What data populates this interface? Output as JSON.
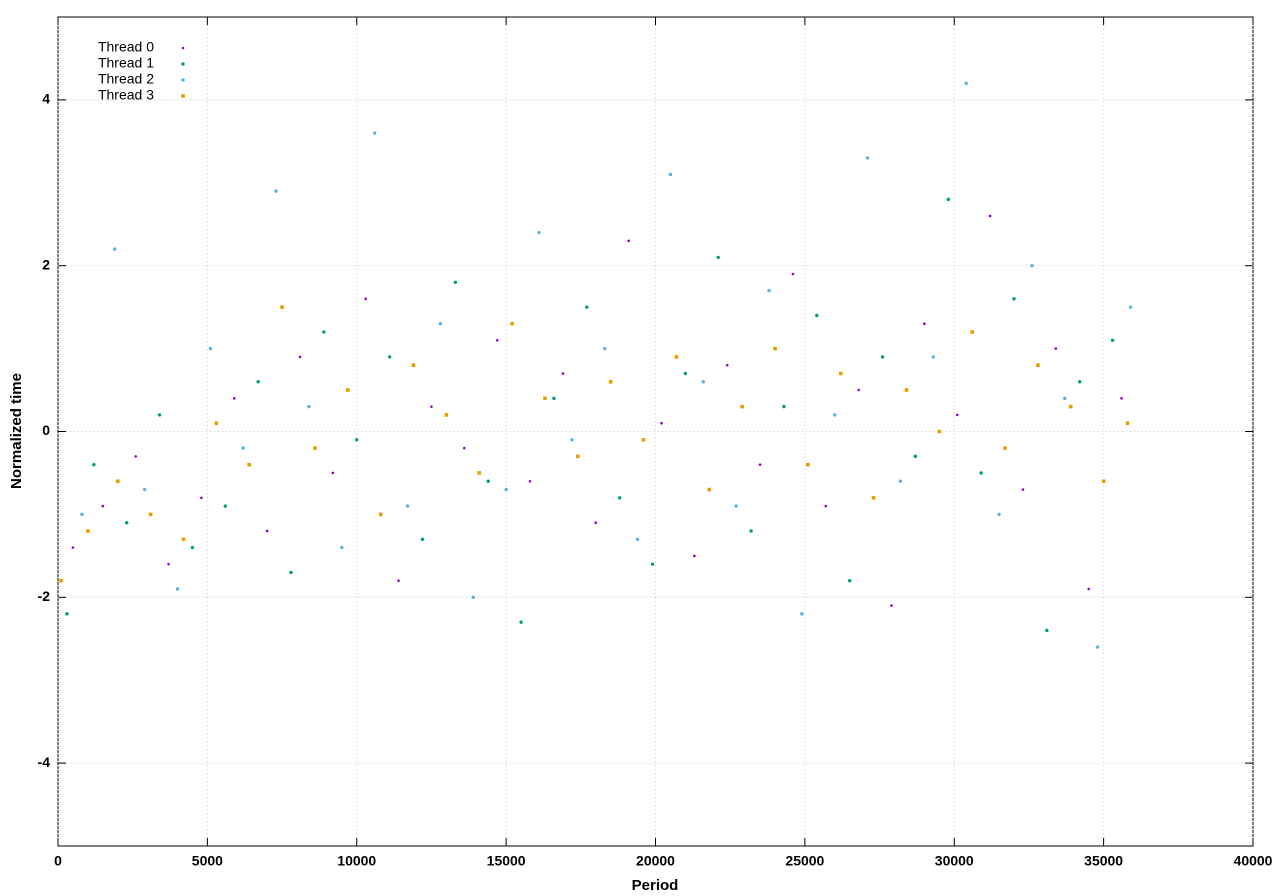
{
  "chart_data": {
    "type": "scatter",
    "x_label": "Period",
    "y_label": "Normalized time",
    "xlim": [
      0,
      40000
    ],
    "ylim": [
      -5,
      5
    ],
    "xticks": [
      0,
      5000,
      10000,
      15000,
      20000,
      25000,
      30000,
      35000,
      40000
    ],
    "yticks": [
      -4,
      -2,
      0,
      2,
      4
    ],
    "grid": true,
    "legend": "top-left",
    "series": [
      {
        "name": "Thread 0",
        "color": "#9400d3",
        "x": [
          500,
          1500,
          2600,
          3700,
          4800,
          5900,
          7000,
          8100,
          9200,
          10300,
          11400,
          12500,
          13600,
          14700,
          15800,
          16900,
          18000,
          19100,
          20200,
          21300,
          22400,
          23500,
          24600,
          25700,
          26800,
          27900,
          29000,
          30100,
          31200,
          32300,
          33400,
          34500,
          35600
        ],
        "values": [
          -1.4,
          -0.9,
          -0.3,
          -1.6,
          -0.8,
          0.4,
          -1.2,
          0.9,
          -0.5,
          1.6,
          -1.8,
          0.3,
          -0.2,
          1.1,
          -0.6,
          0.7,
          -1.1,
          2.3,
          0.1,
          -1.5,
          0.8,
          -0.4,
          1.9,
          -0.9,
          0.5,
          -2.1,
          1.3,
          0.2,
          2.6,
          -0.7,
          1.0,
          -1.9,
          0.4
        ]
      },
      {
        "name": "Thread 1",
        "color": "#009e73",
        "x": [
          300,
          1200,
          2300,
          3400,
          4500,
          5600,
          6700,
          7800,
          8900,
          10000,
          11100,
          12200,
          13300,
          14400,
          15500,
          16600,
          17700,
          18800,
          19900,
          21000,
          22100,
          23200,
          24300,
          25400,
          26500,
          27600,
          28700,
          29800,
          30900,
          32000,
          33100,
          34200,
          35300
        ],
        "values": [
          -2.2,
          -0.4,
          -1.1,
          0.2,
          -1.4,
          -0.9,
          0.6,
          -1.7,
          1.2,
          -0.1,
          0.9,
          -1.3,
          1.8,
          -0.6,
          -2.3,
          0.4,
          1.5,
          -0.8,
          -1.6,
          0.7,
          2.1,
          -1.2,
          0.3,
          1.4,
          -1.8,
          0.9,
          -0.3,
          2.8,
          -0.5,
          1.6,
          -2.4,
          0.6,
          1.1
        ]
      },
      {
        "name": "Thread 2",
        "color": "#56b4e9",
        "x": [
          800,
          1900,
          2900,
          4000,
          5100,
          6200,
          7300,
          8400,
          9500,
          10600,
          11700,
          12800,
          13900,
          15000,
          16100,
          17200,
          18300,
          19400,
          20500,
          21600,
          22700,
          23800,
          24900,
          26000,
          27100,
          28200,
          29300,
          30400,
          31500,
          32600,
          33700,
          34800,
          35900
        ],
        "values": [
          -1.0,
          2.2,
          -0.7,
          -1.9,
          1.0,
          -0.2,
          2.9,
          0.3,
          -1.4,
          3.6,
          -0.9,
          1.3,
          -2.0,
          -0.7,
          2.4,
          -0.1,
          1.0,
          -1.3,
          3.1,
          0.6,
          -0.9,
          1.7,
          -2.2,
          0.2,
          3.3,
          -0.6,
          0.9,
          4.2,
          -1.0,
          2.0,
          0.4,
          -2.6,
          1.5
        ]
      },
      {
        "name": "Thread 3",
        "color": "#e69f00",
        "x": [
          100,
          1000,
          2000,
          3100,
          4200,
          5300,
          6400,
          7500,
          8600,
          9700,
          10800,
          11900,
          13000,
          14100,
          15200,
          16300,
          17400,
          18500,
          19600,
          20700,
          21800,
          22900,
          24000,
          25100,
          26200,
          27300,
          28400,
          29500,
          30600,
          31700,
          32800,
          33900,
          35000,
          35800
        ],
        "values": [
          -1.8,
          -1.2,
          -0.6,
          -1.0,
          -1.3,
          0.1,
          -0.4,
          1.5,
          -0.2,
          0.5,
          -1.0,
          0.8,
          0.2,
          -0.5,
          1.3,
          0.4,
          -0.3,
          0.6,
          -0.1,
          0.9,
          -0.7,
          0.3,
          1.0,
          -0.4,
          0.7,
          -0.8,
          0.5,
          0.0,
          1.2,
          -0.2,
          0.8,
          0.3,
          -0.6,
          0.1
        ]
      }
    ]
  }
}
